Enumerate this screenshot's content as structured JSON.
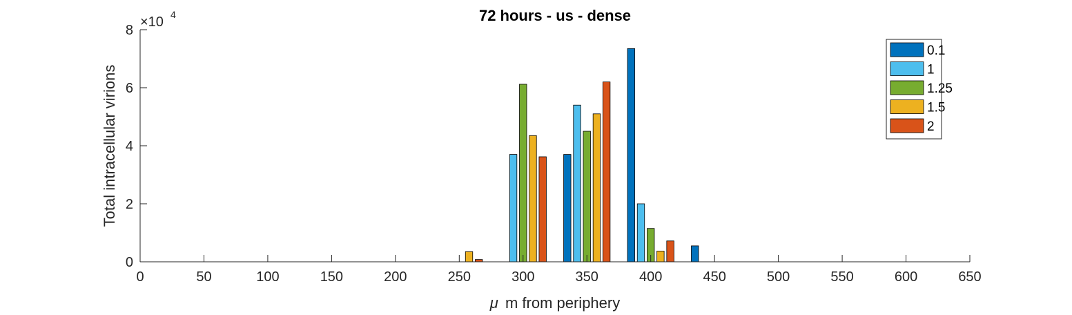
{
  "chart_data": {
    "type": "bar",
    "title": "72 hours - us - dense",
    "xlabel": "m from periphery",
    "xlabel_prefix": "μ",
    "ylabel": "Total intracellular virions",
    "y_multiplier": "×10",
    "y_exponent": "4",
    "xlim": [
      0,
      650
    ],
    "ylim": [
      0,
      8
    ],
    "x_ticks": [
      0,
      50,
      100,
      150,
      200,
      250,
      300,
      350,
      400,
      450,
      500,
      550,
      600,
      650
    ],
    "y_ticks": [
      0,
      2,
      4,
      6,
      8
    ],
    "x_groups": [
      0,
      50,
      100,
      150,
      200,
      250,
      300,
      350,
      400,
      450,
      500,
      550,
      600,
      650
    ],
    "legend_position": "top-right",
    "grid": false,
    "series": [
      {
        "name": "0.1",
        "color": "#0072BD",
        "values": [
          0,
          0,
          0,
          0,
          0,
          0,
          0,
          3.7,
          7.35,
          0.55,
          0,
          0,
          0,
          0
        ]
      },
      {
        "name": "1",
        "color": "#4DBEEE",
        "values": [
          0,
          0,
          0,
          0,
          0,
          0,
          3.7,
          5.4,
          2.0,
          0,
          0,
          0,
          0,
          0
        ]
      },
      {
        "name": "1.25",
        "color": "#77AC30",
        "values": [
          0,
          0,
          0,
          0,
          0,
          0,
          6.12,
          4.5,
          1.15,
          0,
          0,
          0,
          0,
          0
        ]
      },
      {
        "name": "1.5",
        "color": "#EDB120",
        "values": [
          0,
          0,
          0,
          0,
          0,
          0.35,
          4.35,
          5.1,
          0.37,
          0,
          0,
          0,
          0,
          0
        ]
      },
      {
        "name": "2",
        "color": "#D95319",
        "values": [
          0,
          0,
          0,
          0,
          0,
          0.08,
          3.62,
          6.2,
          0.72,
          0,
          0,
          0,
          0,
          0
        ]
      }
    ]
  }
}
